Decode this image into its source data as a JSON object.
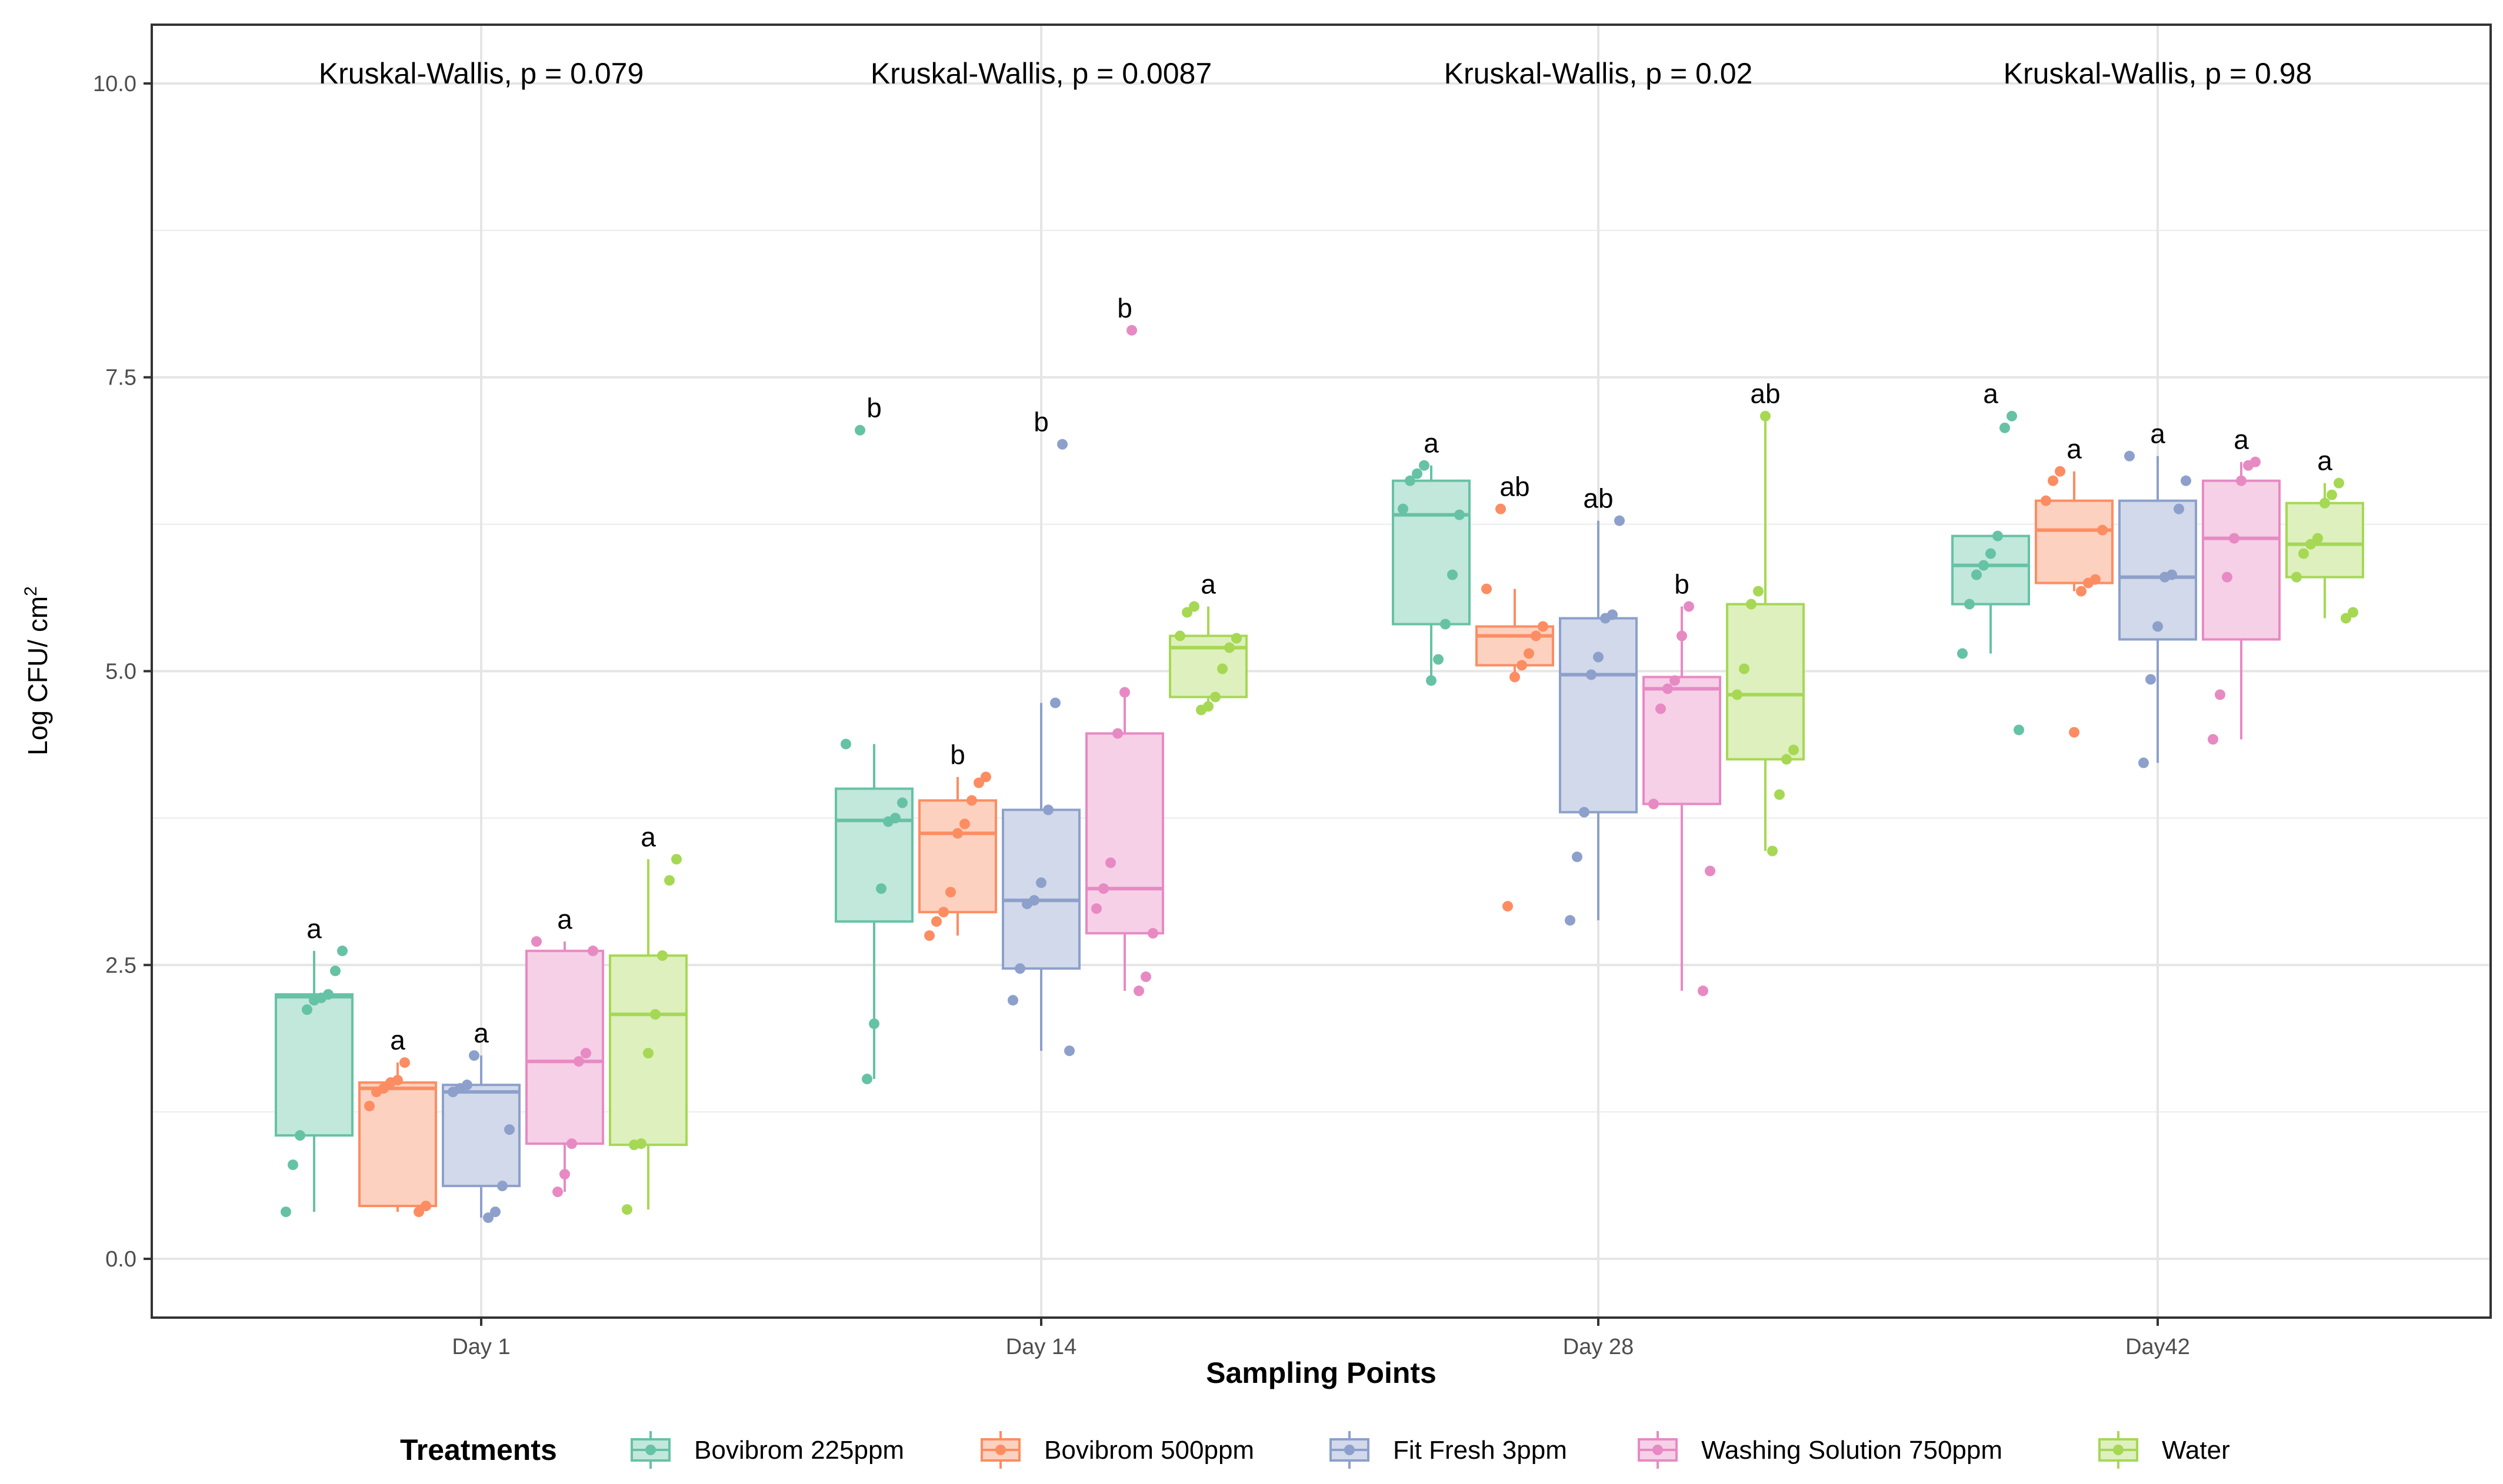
{
  "chart_data": {
    "type": "box",
    "xlabel": "Sampling Points",
    "ylabel": "Log CFU/ cm",
    "ylabel_superscript": "2",
    "ylim": [
      -0.5,
      10.5
    ],
    "yticks": [
      0.0,
      2.5,
      5.0,
      7.5,
      10.0
    ],
    "ytick_labels": [
      "0.0",
      "2.5",
      "5.0",
      "7.5",
      "10.0"
    ],
    "categories": [
      "Day 1",
      "Day 14",
      "Day 28",
      "Day42"
    ],
    "grid": true,
    "legend": {
      "title": "Treatments",
      "position": "bottom"
    },
    "annotations": [
      "Kruskal-Wallis, p = 0.079",
      "Kruskal-Wallis, p = 0.0087",
      "Kruskal-Wallis, p = 0.02",
      "Kruskal-Wallis, p = 0.98"
    ],
    "series": [
      {
        "name": "Bovibrom 225ppm",
        "color": "#66C2A5",
        "fill": "#C2E7DB",
        "boxes": [
          {
            "min": 0.4,
            "q1": 1.05,
            "median": 2.23,
            "q3": 2.25,
            "max": 2.62,
            "letter": "a",
            "points": [
              0.4,
              0.8,
              1.05,
              2.12,
              2.2,
              2.22,
              2.25,
              2.45,
              2.62
            ]
          },
          {
            "min": 1.53,
            "q1": 2.87,
            "median": 3.73,
            "q3": 4.0,
            "max": 4.38,
            "letter": "b",
            "points": [
              7.05,
              1.53,
              2.0,
              3.15,
              3.72,
              3.75,
              3.88,
              4.38
            ]
          },
          {
            "min": 4.92,
            "q1": 5.4,
            "median": 6.33,
            "q3": 6.62,
            "max": 6.75,
            "letter": "a",
            "points": [
              4.92,
              5.1,
              5.4,
              5.82,
              6.33,
              6.38,
              6.62,
              6.68,
              6.75
            ]
          },
          {
            "min": 5.15,
            "q1": 5.57,
            "median": 5.9,
            "q3": 6.15,
            "max": 6.15,
            "letter": "a",
            "points": [
              7.07,
              7.17,
              4.5,
              5.15,
              5.57,
              5.82,
              5.9,
              6.0,
              6.15
            ]
          }
        ]
      },
      {
        "name": "Bovibrom 500ppm",
        "color": "#FC8D62",
        "fill": "#FDD1C0",
        "boxes": [
          {
            "min": 0.4,
            "q1": 0.45,
            "median": 1.45,
            "q3": 1.5,
            "max": 1.67,
            "letter": "a",
            "points": [
              0.4,
              0.45,
              1.3,
              1.42,
              1.45,
              1.5,
              1.52,
              1.67
            ]
          },
          {
            "min": 2.75,
            "q1": 2.95,
            "median": 3.62,
            "q3": 3.9,
            "max": 4.1,
            "letter": "b",
            "points": [
              2.75,
              2.87,
              2.95,
              3.12,
              3.62,
              3.7,
              3.9,
              4.05,
              4.1
            ]
          },
          {
            "min": 4.95,
            "q1": 5.05,
            "median": 5.3,
            "q3": 5.38,
            "max": 5.7,
            "letter": "ab",
            "points": [
              6.38,
              3.0,
              4.95,
              5.05,
              5.15,
              5.3,
              5.38,
              5.7
            ]
          },
          {
            "min": 5.68,
            "q1": 5.75,
            "median": 6.2,
            "q3": 6.45,
            "max": 6.7,
            "letter": "a",
            "points": [
              4.48,
              5.68,
              5.75,
              5.78,
              6.2,
              6.45,
              6.62,
              6.7
            ]
          }
        ]
      },
      {
        "name": "Fit Fresh 3ppm",
        "color": "#8DA0CB",
        "fill": "#D1D9EA",
        "boxes": [
          {
            "min": 0.35,
            "q1": 0.62,
            "median": 1.42,
            "q3": 1.48,
            "max": 1.73,
            "letter": "a",
            "points": [
              0.35,
              0.4,
              0.62,
              1.1,
              1.42,
              1.45,
              1.48,
              1.73
            ]
          },
          {
            "min": 1.77,
            "q1": 2.47,
            "median": 3.05,
            "q3": 3.82,
            "max": 4.73,
            "letter": "b",
            "points": [
              6.93,
              1.77,
              2.2,
              2.47,
              3.02,
              3.05,
              3.2,
              3.82,
              4.73
            ]
          },
          {
            "min": 2.88,
            "q1": 3.8,
            "median": 4.97,
            "q3": 5.45,
            "max": 6.28,
            "letter": "ab",
            "points": [
              2.88,
              3.42,
              3.8,
              4.97,
              5.12,
              5.45,
              5.48,
              6.28
            ]
          },
          {
            "min": 4.22,
            "q1": 5.27,
            "median": 5.8,
            "q3": 6.45,
            "max": 6.83,
            "letter": "a",
            "points": [
              4.22,
              4.93,
              5.38,
              5.8,
              5.82,
              6.38,
              6.62,
              6.83
            ]
          }
        ]
      },
      {
        "name": "Washing Solution 750ppm",
        "color": "#E78AC3",
        "fill": "#F6D0E7",
        "boxes": [
          {
            "min": 0.57,
            "q1": 0.98,
            "median": 1.68,
            "q3": 2.62,
            "max": 2.7,
            "letter": "a",
            "points": [
              0.57,
              0.72,
              0.98,
              1.68,
              1.75,
              2.62,
              2.7
            ]
          },
          {
            "min": 2.28,
            "q1": 2.77,
            "median": 3.15,
            "q3": 4.47,
            "max": 4.82,
            "letter": "b",
            "points": [
              7.9,
              2.28,
              2.4,
              2.77,
              2.98,
              3.15,
              3.37,
              4.47,
              4.82
            ]
          },
          {
            "min": 2.28,
            "q1": 3.87,
            "median": 4.85,
            "q3": 4.95,
            "max": 5.55,
            "letter": "b",
            "points": [
              2.28,
              3.3,
              3.87,
              4.68,
              4.85,
              4.92,
              5.3,
              5.55
            ]
          },
          {
            "min": 4.42,
            "q1": 5.27,
            "median": 6.13,
            "q3": 6.62,
            "max": 6.78,
            "letter": "a",
            "points": [
              4.42,
              4.8,
              5.8,
              6.13,
              6.62,
              6.75,
              6.78
            ]
          }
        ]
      },
      {
        "name": "Water",
        "color": "#A6D854",
        "fill": "#DDF0BE",
        "boxes": [
          {
            "min": 0.42,
            "q1": 0.97,
            "median": 2.08,
            "q3": 2.58,
            "max": 3.4,
            "letter": "a",
            "points": [
              0.42,
              0.97,
              0.98,
              1.75,
              2.08,
              2.58,
              3.22,
              3.4
            ]
          },
          {
            "min": 4.67,
            "q1": 4.78,
            "median": 5.2,
            "q3": 5.3,
            "max": 5.55,
            "letter": "a",
            "points": [
              4.67,
              4.7,
              4.78,
              5.02,
              5.2,
              5.28,
              5.3,
              5.5,
              5.55
            ]
          },
          {
            "min": 3.47,
            "q1": 4.25,
            "median": 4.8,
            "q3": 5.57,
            "max": 7.17,
            "letter": "ab",
            "points": [
              3.47,
              3.95,
              4.25,
              4.33,
              4.8,
              5.02,
              5.57,
              5.68,
              7.17
            ]
          },
          {
            "min": 5.45,
            "q1": 5.8,
            "median": 6.08,
            "q3": 6.43,
            "max": 6.6,
            "letter": "a",
            "points": [
              5.45,
              5.5,
              5.8,
              6.0,
              6.08,
              6.13,
              6.43,
              6.5,
              6.6
            ]
          }
        ]
      }
    ]
  }
}
